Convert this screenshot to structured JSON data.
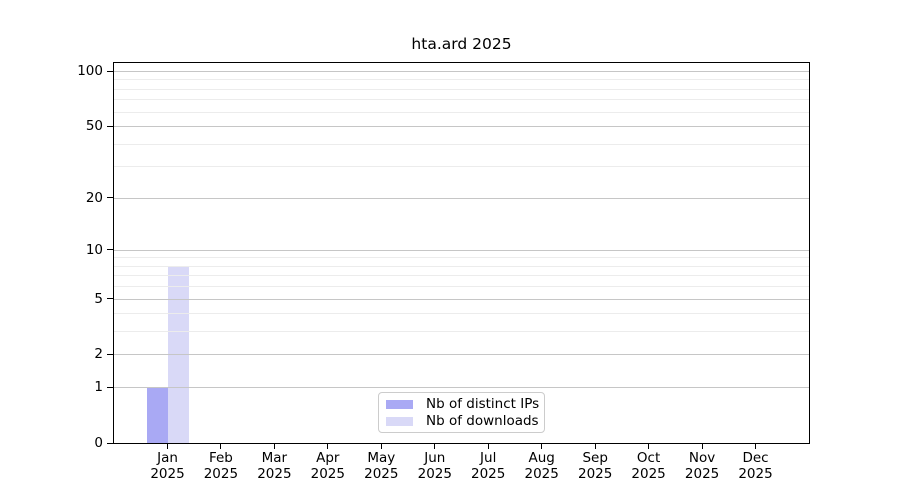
{
  "title": "hta.ard 2025",
  "chart_data": {
    "type": "bar",
    "title": "hta.ard 2025",
    "categories": [
      "Jan 2025",
      "Feb 2025",
      "Mar 2025",
      "Apr 2025",
      "May 2025",
      "Jun 2025",
      "Jul 2025",
      "Aug 2025",
      "Sep 2025",
      "Oct 2025",
      "Nov 2025",
      "Dec 2025"
    ],
    "month_labels": [
      "Jan",
      "Feb",
      "Mar",
      "Apr",
      "May",
      "Jun",
      "Jul",
      "Aug",
      "Sep",
      "Oct",
      "Nov",
      "Dec"
    ],
    "year_label": "2025",
    "series": [
      {
        "name": "Nb of distinct IPs",
        "color": "#a9a9f4",
        "values": [
          1,
          0,
          0,
          0,
          0,
          0,
          0,
          0,
          0,
          0,
          0,
          0
        ]
      },
      {
        "name": "Nb of downloads",
        "color": "#d9d9f7",
        "values": [
          8,
          0,
          0,
          0,
          0,
          0,
          0,
          0,
          0,
          0,
          0,
          0
        ]
      }
    ],
    "xlabel": "",
    "ylabel": "",
    "y_scale": "log10(1+v)",
    "ylim": [
      0,
      101
    ],
    "y_major_ticks": [
      0,
      1,
      2,
      5,
      10,
      20,
      50,
      100
    ],
    "y_minor_ticks": [
      3,
      4,
      6,
      7,
      8,
      9,
      30,
      40,
      60,
      70,
      80,
      90
    ],
    "grid": "horizontal majors and minors, drawn over bars",
    "legend_position": "inside bottom-center"
  },
  "legend": {
    "items": [
      {
        "label": "Nb of distinct IPs",
        "color": "#a9a9f4"
      },
      {
        "label": "Nb of downloads",
        "color": "#d9d9f7"
      }
    ]
  },
  "colors": {
    "major_grid": "#c6c6c6",
    "minor_grid": "#ececec",
    "axis": "#000000",
    "background": "#ffffff",
    "text": "#000000"
  }
}
